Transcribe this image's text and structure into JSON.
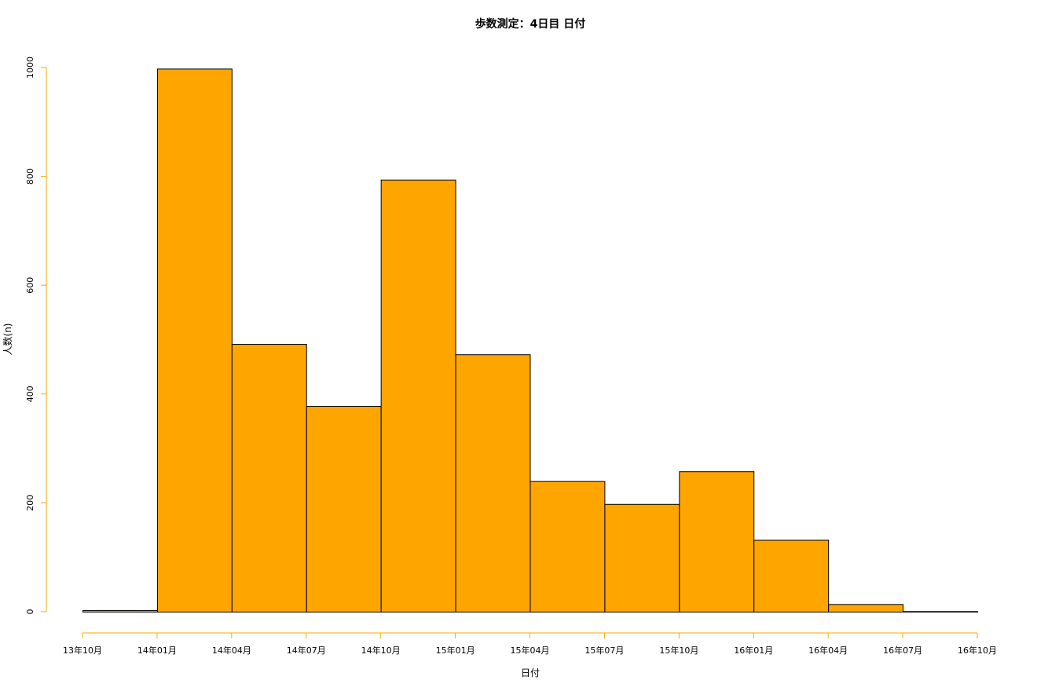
{
  "chart_data": {
    "type": "bar",
    "title": "歩数測定：4日目 日付",
    "xlabel": "日付",
    "ylabel": "人数(n)",
    "ylim": [
      0,
      1000
    ],
    "yticks": [
      0,
      200,
      400,
      600,
      800,
      1000
    ],
    "categories": [
      "13年10月",
      "14年01月",
      "14年04月",
      "14年07月",
      "14年10月",
      "15年01月",
      "15年04月",
      "15年07月",
      "15年10月",
      "16年01月",
      "16年04月",
      "16年07月",
      "16年10月"
    ],
    "bins": [
      {
        "start": "13年10月",
        "end": "14年01月",
        "value": 3
      },
      {
        "start": "14年01月",
        "end": "14年04月",
        "value": 998
      },
      {
        "start": "14年04月",
        "end": "14年07月",
        "value": 492
      },
      {
        "start": "14年07月",
        "end": "14年10月",
        "value": 378
      },
      {
        "start": "14年10月",
        "end": "15年01月",
        "value": 794
      },
      {
        "start": "15年01月",
        "end": "15年04月",
        "value": 473
      },
      {
        "start": "15年04月",
        "end": "15年07月",
        "value": 240
      },
      {
        "start": "15年07月",
        "end": "15年10月",
        "value": 198
      },
      {
        "start": "15年10月",
        "end": "16年01月",
        "value": 258
      },
      {
        "start": "16年01月",
        "end": "16年04月",
        "value": 132
      },
      {
        "start": "16年04月",
        "end": "16年07月",
        "value": 14
      },
      {
        "start": "16年07月",
        "end": "16年10月",
        "value": 1
      }
    ],
    "bar_color": "#FFA500",
    "bar_border_color": "#000000",
    "axis_color": "#FFA500",
    "grid": false,
    "legend": "none"
  }
}
